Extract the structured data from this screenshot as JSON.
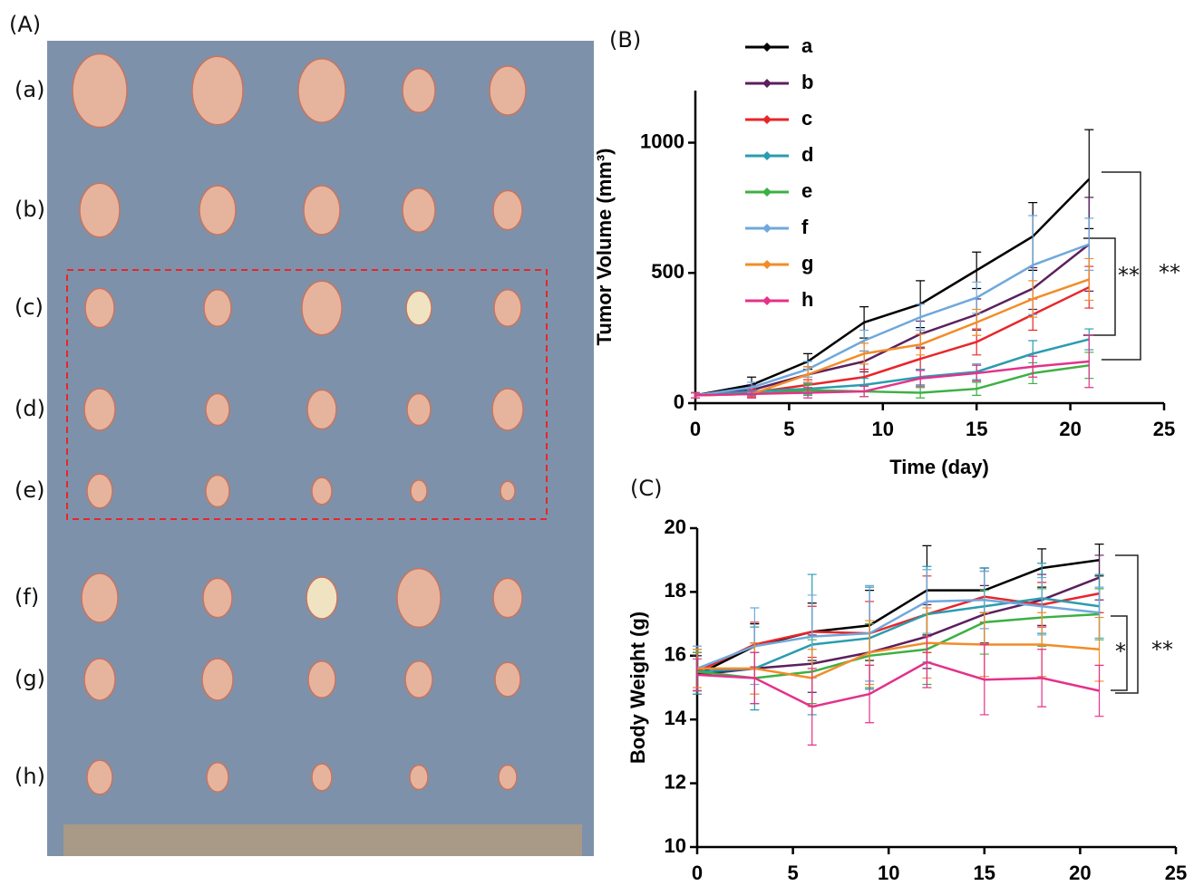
{
  "photo": {
    "label": "(A)",
    "rows": [
      "(a)",
      "(b)",
      "(c)",
      "(d)",
      "(e)",
      "(f)",
      "(g)",
      "(h)"
    ]
  },
  "chart_data": [
    {
      "type": "line",
      "panel": "(B)",
      "y_label": "Tumor Volume (mm³)",
      "x_label": "Time (day)",
      "x": [
        0,
        3,
        6,
        9,
        12,
        15,
        18,
        21
      ],
      "xlim": [
        0,
        25
      ],
      "xticks": [
        0,
        5,
        10,
        15,
        20,
        25
      ],
      "ylim": [
        0,
        1200
      ],
      "yticks": [
        0,
        500,
        1000
      ],
      "annotations": [
        "**",
        "**"
      ],
      "series": [
        {
          "name": "a",
          "color": "#000000",
          "values": [
            30,
            70,
            160,
            310,
            380,
            510,
            640,
            860
          ],
          "errors": [
            10,
            30,
            30,
            60,
            90,
            70,
            130,
            190
          ]
        },
        {
          "name": "b",
          "color": "#5c1f5e",
          "values": [
            30,
            50,
            110,
            160,
            265,
            340,
            440,
            610
          ],
          "errors": [
            10,
            20,
            30,
            40,
            50,
            60,
            80,
            180
          ]
        },
        {
          "name": "c",
          "color": "#e8262a",
          "values": [
            30,
            40,
            70,
            100,
            170,
            235,
            340,
            445
          ],
          "errors": [
            10,
            15,
            20,
            30,
            40,
            50,
            60,
            80
          ]
        },
        {
          "name": "d",
          "color": "#2a9cb0",
          "values": [
            30,
            45,
            55,
            70,
            100,
            120,
            190,
            245
          ],
          "errors": [
            10,
            15,
            20,
            25,
            30,
            30,
            50,
            40
          ]
        },
        {
          "name": "e",
          "color": "#3cb043",
          "values": [
            30,
            35,
            50,
            45,
            40,
            55,
            115,
            145
          ],
          "errors": [
            10,
            15,
            20,
            20,
            20,
            25,
            40,
            50
          ]
        },
        {
          "name": "f",
          "color": "#6fa8dc",
          "values": [
            30,
            60,
            130,
            240,
            330,
            405,
            530,
            610
          ],
          "errors": [
            10,
            20,
            30,
            40,
            50,
            60,
            190,
            100
          ]
        },
        {
          "name": "g",
          "color": "#f28c28",
          "values": [
            30,
            35,
            110,
            190,
            225,
            310,
            400,
            475
          ],
          "errors": [
            10,
            15,
            30,
            40,
            40,
            50,
            70,
            80
          ]
        },
        {
          "name": "h",
          "color": "#e4318b",
          "values": [
            30,
            35,
            40,
            45,
            95,
            115,
            140,
            160
          ],
          "errors": [
            10,
            15,
            20,
            20,
            30,
            30,
            40,
            100
          ]
        }
      ]
    },
    {
      "type": "line",
      "panel": "(C)",
      "y_label": "Body Weight (g)",
      "x": [
        0,
        3,
        6,
        9,
        12,
        15,
        18,
        21
      ],
      "xlim": [
        0,
        25
      ],
      "xticks": [
        0,
        5,
        10,
        15,
        20,
        25
      ],
      "ylim": [
        10,
        20
      ],
      "yticks": [
        10,
        12,
        14,
        16,
        18,
        20
      ],
      "annotations": [
        "*",
        "**"
      ],
      "series": [
        {
          "color": "#000000",
          "values": [
            15.4,
            16.3,
            16.75,
            16.95,
            18.05,
            18.05,
            18.75,
            19.0
          ],
          "errors": [
            0.6,
            0.7,
            0.9,
            1.1,
            1.4,
            0.7,
            0.6,
            0.5
          ]
        },
        {
          "color": "#5c1f5e",
          "values": [
            15.4,
            15.6,
            15.75,
            16.1,
            16.6,
            17.3,
            17.75,
            18.45
          ],
          "errors": [
            0.6,
            0.8,
            0.9,
            0.9,
            1.0,
            0.9,
            0.8,
            0.7
          ]
        },
        {
          "color": "#e8262a",
          "values": [
            15.5,
            16.35,
            16.75,
            16.7,
            17.3,
            17.85,
            17.6,
            17.95
          ],
          "errors": [
            0.6,
            0.7,
            0.8,
            1.0,
            1.2,
            0.8,
            0.7,
            0.6
          ]
        },
        {
          "color": "#2a9cb0",
          "values": [
            15.5,
            15.6,
            16.35,
            16.55,
            17.3,
            17.55,
            17.8,
            17.55
          ],
          "errors": [
            0.7,
            1.3,
            2.2,
            1.6,
            1.5,
            1.2,
            1.1,
            1.0
          ]
        },
        {
          "color": "#3cb043",
          "values": [
            15.5,
            15.3,
            15.5,
            16.0,
            16.2,
            17.05,
            17.2,
            17.3
          ],
          "errors": [
            0.6,
            0.8,
            1.0,
            1.0,
            1.1,
            1.0,
            0.9,
            0.8
          ]
        },
        {
          "color": "#6fa8dc",
          "values": [
            15.6,
            16.3,
            16.6,
            16.7,
            17.7,
            17.75,
            17.55,
            17.35
          ],
          "errors": [
            0.7,
            1.2,
            1.3,
            1.5,
            1.0,
            0.9,
            0.9,
            0.8
          ]
        },
        {
          "color": "#f28c28",
          "values": [
            15.6,
            15.6,
            15.3,
            16.1,
            16.4,
            16.35,
            16.35,
            16.2
          ],
          "errors": [
            0.6,
            0.8,
            0.9,
            1.0,
            1.1,
            1.0,
            1.0,
            1.0
          ]
        },
        {
          "color": "#e4318b",
          "values": [
            15.4,
            15.3,
            14.4,
            14.8,
            15.8,
            15.25,
            15.3,
            14.9
          ],
          "errors": [
            0.5,
            0.8,
            1.2,
            0.9,
            0.8,
            1.1,
            0.9,
            0.8
          ]
        }
      ]
    }
  ]
}
